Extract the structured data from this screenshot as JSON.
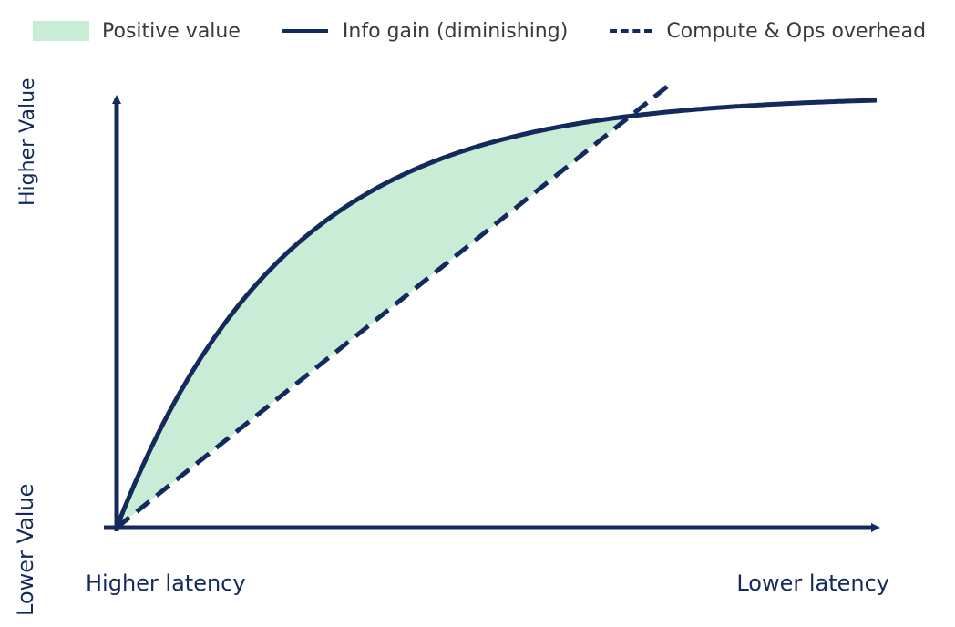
{
  "legend": {
    "fill_label": "Positive value",
    "solid_label": "Info gain (diminishing)",
    "dashed_label": "Compute & Ops overhead"
  },
  "axes": {
    "x_left_label": "Higher latency",
    "x_right_label": "Lower latency",
    "y_top_label": "Higher Value",
    "y_bottom_label": "Lower Value"
  },
  "colors": {
    "line": "#152a5c",
    "fill": "#c8ecd6"
  },
  "chart_data": {
    "type": "line",
    "xlim": [
      0,
      1
    ],
    "ylim": [
      0,
      1
    ],
    "grid": false,
    "legend_position": "top",
    "series": [
      {
        "name": "Info gain (diminishing)",
        "style": "solid",
        "x": [
          0,
          0.05,
          0.1,
          0.15,
          0.2,
          0.25,
          0.3,
          0.35,
          0.4,
          0.45,
          0.5,
          0.55,
          0.6,
          0.65,
          0.7,
          0.75,
          0.8,
          0.85,
          0.9,
          0.95,
          1.0
        ],
        "y": [
          0,
          0.204,
          0.367,
          0.497,
          0.601,
          0.684,
          0.75,
          0.803,
          0.845,
          0.879,
          0.906,
          0.927,
          0.944,
          0.958,
          0.969,
          0.977,
          0.984,
          0.99,
          0.994,
          0.998,
          1.0
        ]
      },
      {
        "name": "Compute & Ops overhead",
        "style": "dashed",
        "x": [
          0,
          0.73
        ],
        "y": [
          0,
          1.04
        ]
      }
    ],
    "fill_between": {
      "name": "Positive value",
      "upper": "Info gain (diminishing)",
      "lower": "Compute & Ops overhead"
    }
  }
}
